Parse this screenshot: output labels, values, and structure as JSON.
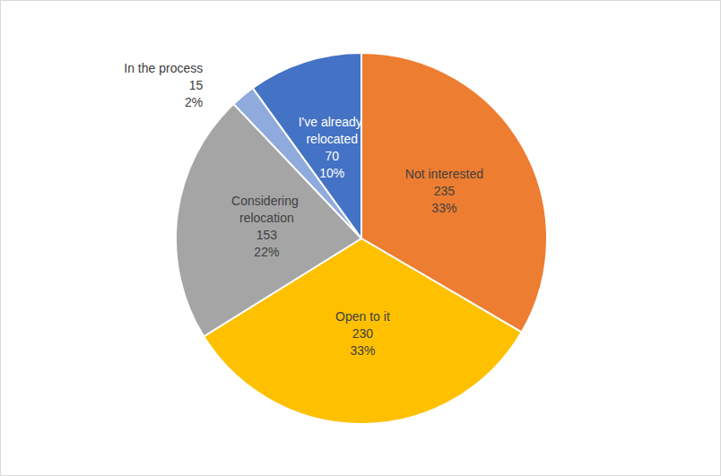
{
  "chart_data": {
    "type": "pie",
    "categories": [
      "Not interested",
      "Open to it",
      "Considering relocation",
      "In the process",
      "I've already relocated"
    ],
    "values": [
      235,
      230,
      153,
      15,
      70
    ],
    "percentages": [
      {
        "value": 33,
        "label": "33%"
      },
      {
        "value": 33,
        "label": "33%"
      },
      {
        "value": 22,
        "label": "22%"
      },
      {
        "value": 2,
        "label": "2%"
      },
      {
        "value": 10,
        "label": "10%"
      }
    ],
    "colors": [
      "#ed7d31",
      "#ffc000",
      "#a5a5a5",
      "#8faadc",
      "#4472c4"
    ],
    "data_labels": true,
    "legend": false
  }
}
